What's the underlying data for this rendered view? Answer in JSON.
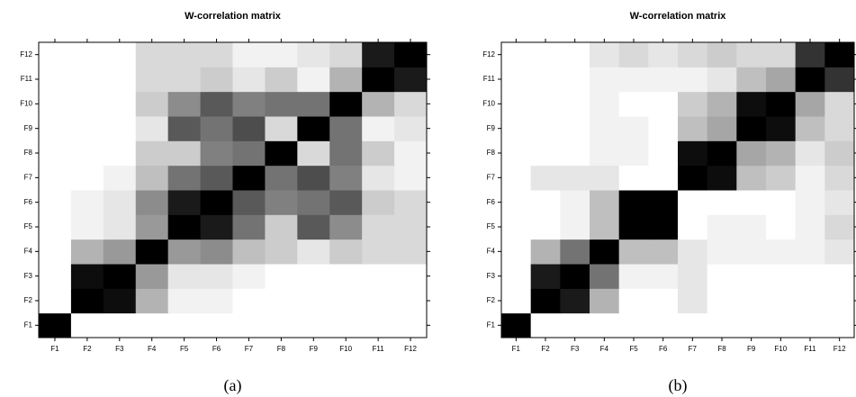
{
  "chart_data": [
    {
      "type": "heatmap",
      "title": "W-correlation matrix",
      "caption": "(a)",
      "categories": [
        "F1",
        "F2",
        "F3",
        "F4",
        "F5",
        "F6",
        "F7",
        "F8",
        "F9",
        "F10",
        "F11",
        "F12"
      ],
      "color_low": "#ffffff",
      "color_high": "#000000",
      "vlim": [
        0,
        1
      ],
      "values": [
        [
          1,
          0,
          0,
          0,
          0,
          0,
          0,
          0,
          0,
          0,
          0,
          0
        ],
        [
          0,
          1,
          0.95,
          0.3,
          0.05,
          0.05,
          0,
          0,
          0,
          0,
          0,
          0
        ],
        [
          0,
          0.95,
          1,
          0.4,
          0.1,
          0.1,
          0.05,
          0,
          0,
          0,
          0,
          0
        ],
        [
          0,
          0.3,
          0.4,
          1,
          0.4,
          0.45,
          0.25,
          0.2,
          0.1,
          0.2,
          0.15,
          0.15
        ],
        [
          0,
          0.05,
          0.1,
          0.4,
          1,
          0.9,
          0.55,
          0.2,
          0.65,
          0.45,
          0.15,
          0.15
        ],
        [
          0,
          0.05,
          0.1,
          0.45,
          0.9,
          1,
          0.65,
          0.5,
          0.55,
          0.65,
          0.2,
          0.15
        ],
        [
          0,
          0,
          0.05,
          0.25,
          0.55,
          0.65,
          1,
          0.55,
          0.7,
          0.5,
          0.1,
          0.05
        ],
        [
          0,
          0,
          0,
          0.2,
          0.2,
          0.5,
          0.55,
          1,
          0.15,
          0.55,
          0.2,
          0.05
        ],
        [
          0,
          0,
          0,
          0.1,
          0.65,
          0.55,
          0.7,
          0.15,
          1,
          0.55,
          0.05,
          0.1
        ],
        [
          0,
          0,
          0,
          0.2,
          0.45,
          0.65,
          0.5,
          0.55,
          0.55,
          1,
          0.3,
          0.15
        ],
        [
          0,
          0,
          0,
          0.15,
          0.15,
          0.2,
          0.1,
          0.2,
          0.05,
          0.3,
          1,
          0.9
        ],
        [
          0,
          0,
          0,
          0.15,
          0.15,
          0.15,
          0.05,
          0.05,
          0.1,
          0.15,
          0.9,
          1
        ]
      ]
    },
    {
      "type": "heatmap",
      "title": "W-correlation matrix",
      "caption": "(b)",
      "categories": [
        "F1",
        "F2",
        "F3",
        "F4",
        "F5",
        "F6",
        "F7",
        "F8",
        "F9",
        "F10",
        "F11",
        "F12"
      ],
      "color_low": "#ffffff",
      "color_high": "#000000",
      "vlim": [
        0,
        1
      ],
      "values": [
        [
          1,
          0,
          0,
          0,
          0,
          0,
          0,
          0,
          0,
          0,
          0,
          0
        ],
        [
          0,
          1,
          0.9,
          0.3,
          0,
          0,
          0.1,
          0,
          0,
          0,
          0,
          0
        ],
        [
          0,
          0.9,
          1,
          0.55,
          0.05,
          0.05,
          0.1,
          0,
          0,
          0,
          0,
          0
        ],
        [
          0,
          0.3,
          0.55,
          1,
          0.25,
          0.25,
          0.1,
          0.05,
          0.05,
          0.05,
          0.05,
          0.1
        ],
        [
          0,
          0,
          0.05,
          0.25,
          1,
          1,
          0,
          0.05,
          0.05,
          0,
          0.05,
          0.15
        ],
        [
          0,
          0,
          0.05,
          0.25,
          1,
          1,
          0,
          0,
          0,
          0,
          0.05,
          0.1
        ],
        [
          0,
          0.1,
          0.1,
          0.1,
          0,
          0,
          1,
          0.95,
          0.25,
          0.2,
          0.05,
          0.15
        ],
        [
          0,
          0,
          0,
          0.05,
          0.05,
          0,
          0.95,
          1,
          0.35,
          0.3,
          0.1,
          0.2
        ],
        [
          0,
          0,
          0,
          0.05,
          0.05,
          0,
          0.25,
          0.35,
          1,
          0.95,
          0.25,
          0.15
        ],
        [
          0,
          0,
          0,
          0.05,
          0,
          0,
          0.2,
          0.3,
          0.95,
          1,
          0.35,
          0.15
        ],
        [
          0,
          0,
          0,
          0.05,
          0.05,
          0.05,
          0.05,
          0.1,
          0.25,
          0.35,
          1,
          0.8
        ],
        [
          0,
          0,
          0,
          0.1,
          0.15,
          0.1,
          0.15,
          0.2,
          0.15,
          0.15,
          0.8,
          1
        ]
      ]
    }
  ]
}
